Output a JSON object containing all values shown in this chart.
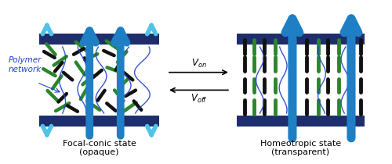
{
  "fig_width": 5.0,
  "fig_height": 2.1,
  "dpi": 100,
  "bg": "#ffffff",
  "dark_blue": "#1e2d6b",
  "cyan": "#4fc3e8",
  "big_blue": "#1e7fc4",
  "green": "#2a862a",
  "black_rod": "#111111",
  "poly_blue": "#2244cc",
  "label_left_1": "Focal-conic state",
  "label_left_2": "(opaque)",
  "label_right_1": "Homeotropic state",
  "label_right_2": "(transparent)",
  "polymer_label": "Polymer\nnetwork",
  "von": "$V_{on}$",
  "voff": "$V_{off}$"
}
